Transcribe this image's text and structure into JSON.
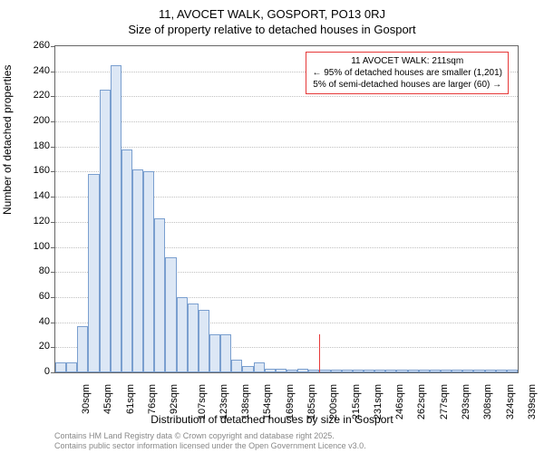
{
  "titles": {
    "line1": "11, AVOCET WALK, GOSPORT, PO13 0RJ",
    "line2": "Size of property relative to detached houses in Gosport"
  },
  "chart": {
    "type": "histogram",
    "ylabel": "Number of detached properties",
    "xlabel": "Distribution of detached houses by size in Gosport",
    "ylim": [
      0,
      260
    ],
    "ytick_step": 20,
    "yticks": [
      0,
      20,
      40,
      60,
      80,
      100,
      120,
      140,
      160,
      180,
      200,
      220,
      240,
      260
    ],
    "xticks": [
      "30sqm",
      "45sqm",
      "61sqm",
      "76sqm",
      "92sqm",
      "107sqm",
      "123sqm",
      "138sqm",
      "154sqm",
      "169sqm",
      "185sqm",
      "200sqm",
      "215sqm",
      "231sqm",
      "246sqm",
      "262sqm",
      "277sqm",
      "293sqm",
      "308sqm",
      "324sqm",
      "339sqm"
    ],
    "bars": [
      8,
      8,
      37,
      158,
      225,
      245,
      178,
      162,
      160,
      123,
      92,
      60,
      55,
      50,
      30,
      30,
      10,
      5,
      8,
      3,
      3,
      2,
      3,
      2,
      2,
      2,
      2,
      2,
      2,
      2,
      2,
      2,
      2,
      2,
      2,
      2,
      2,
      2,
      2,
      2,
      2,
      2
    ],
    "bar_color": "#dce7f5",
    "bar_border_color": "#7a9fcf",
    "grid_color": "#c0c0c0",
    "axis_color": "#666666",
    "background_color": "#ffffff",
    "marker": {
      "position_sqm": 211,
      "color": "#e63939",
      "height_value": 30
    },
    "annotation": {
      "line1": "11 AVOCET WALK: 211sqm",
      "line2": "← 95% of detached houses are smaller (1,201)",
      "line3": "5% of semi-detached houses are larger (60) →",
      "border_color": "#e63939"
    }
  },
  "footer": {
    "line1": "Contains HM Land Registry data © Crown copyright and database right 2025.",
    "line2": "Contains public sector information licensed under the Open Government Licence v3.0."
  }
}
